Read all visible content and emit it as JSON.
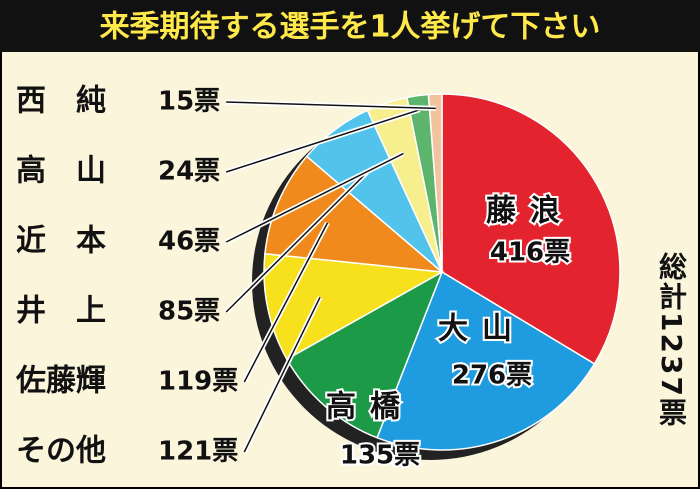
{
  "chart_data": {
    "type": "pie",
    "title": "来季期待する選手を1人挙げて下さい",
    "total_label": "総計1237票",
    "categories": [
      "藤浪",
      "大山",
      "高橋",
      "その他",
      "佐藤輝",
      "井上",
      "近本",
      "高山",
      "西純"
    ],
    "values": [
      416,
      276,
      135,
      121,
      119,
      85,
      46,
      24,
      15
    ],
    "value_labels": [
      "416票",
      "276票",
      "135票",
      "121票",
      "119票",
      "85票",
      "46票",
      "24票",
      "15票"
    ],
    "colors": [
      "#e3242f",
      "#1f9ce0",
      "#1c9a48",
      "#f6e11c",
      "#f08a1d",
      "#52c3ea",
      "#f7ef8e",
      "#5db46c",
      "#f1c39f"
    ]
  }
}
